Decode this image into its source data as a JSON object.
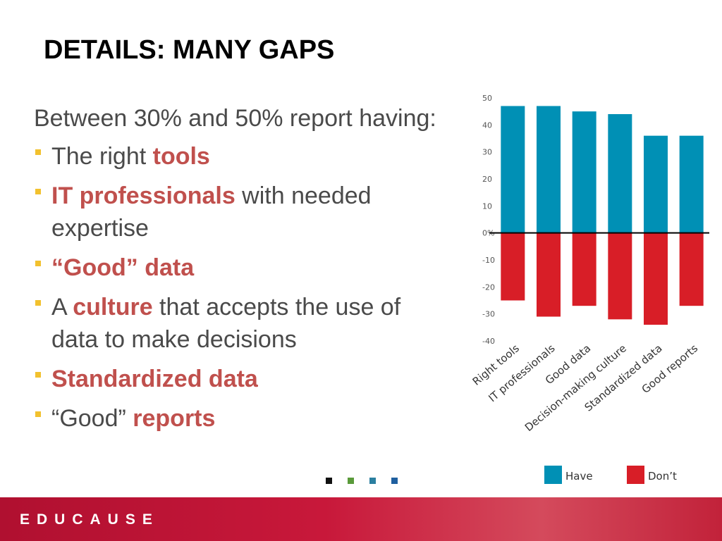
{
  "slide": {
    "title": "DETAILS: MANY GAPS",
    "intro": "Between 30% and 50% report having:",
    "bullets": [
      {
        "parts": [
          {
            "text": "The right ",
            "accent": false
          },
          {
            "text": "tools",
            "accent": true
          }
        ]
      },
      {
        "parts": [
          {
            "text": "IT professionals",
            "accent": true
          },
          {
            "text": " with needed expertise",
            "accent": false
          }
        ]
      },
      {
        "parts": [
          {
            "text": "“Good” data",
            "accent": true
          }
        ]
      },
      {
        "parts": [
          {
            "text": "A ",
            "accent": false
          },
          {
            "text": "culture",
            "accent": true
          },
          {
            "text": " that accepts the use of data to make decisions",
            "accent": false
          }
        ]
      },
      {
        "parts": [
          {
            "text": "Standardized data",
            "accent": true
          }
        ]
      },
      {
        "parts": [
          {
            "text": "“Good” ",
            "accent": false
          },
          {
            "text": "reports",
            "accent": true
          }
        ]
      }
    ]
  },
  "colors": {
    "accent": "#c0504d",
    "text": "#4a4a4a",
    "bullet_marker": "#f2c12e",
    "have": "#0090b5",
    "dont": "#d81e27",
    "footer": "#c8183a",
    "dots": [
      "#111111",
      "#5a9a3a",
      "#2b7fa0",
      "#1f5f9f"
    ]
  },
  "chart_data": {
    "type": "bar",
    "categories": [
      "Right tools",
      "IT professionals",
      "Good data",
      "Decision-making culture",
      "Standardized data",
      "Good reports"
    ],
    "series": [
      {
        "name": "Have",
        "values": [
          47,
          47,
          45,
          44,
          36,
          36
        ]
      },
      {
        "name": "Don’t",
        "values": [
          -25,
          -31,
          -27,
          -32,
          -34,
          -27
        ]
      }
    ],
    "title": "",
    "xlabel": "",
    "ylabel": "",
    "ylim": [
      -40,
      50
    ],
    "yticks": [
      50,
      40,
      30,
      20,
      10,
      0,
      -10,
      -20,
      -30,
      -40
    ],
    "ytick_labels": [
      "50",
      "40",
      "30",
      "20",
      "10",
      "0%",
      "-10",
      "-20",
      "-30",
      "-40"
    ],
    "legend": "bottom",
    "grid": false
  },
  "footer": {
    "logo": "EDUCAUSE"
  }
}
